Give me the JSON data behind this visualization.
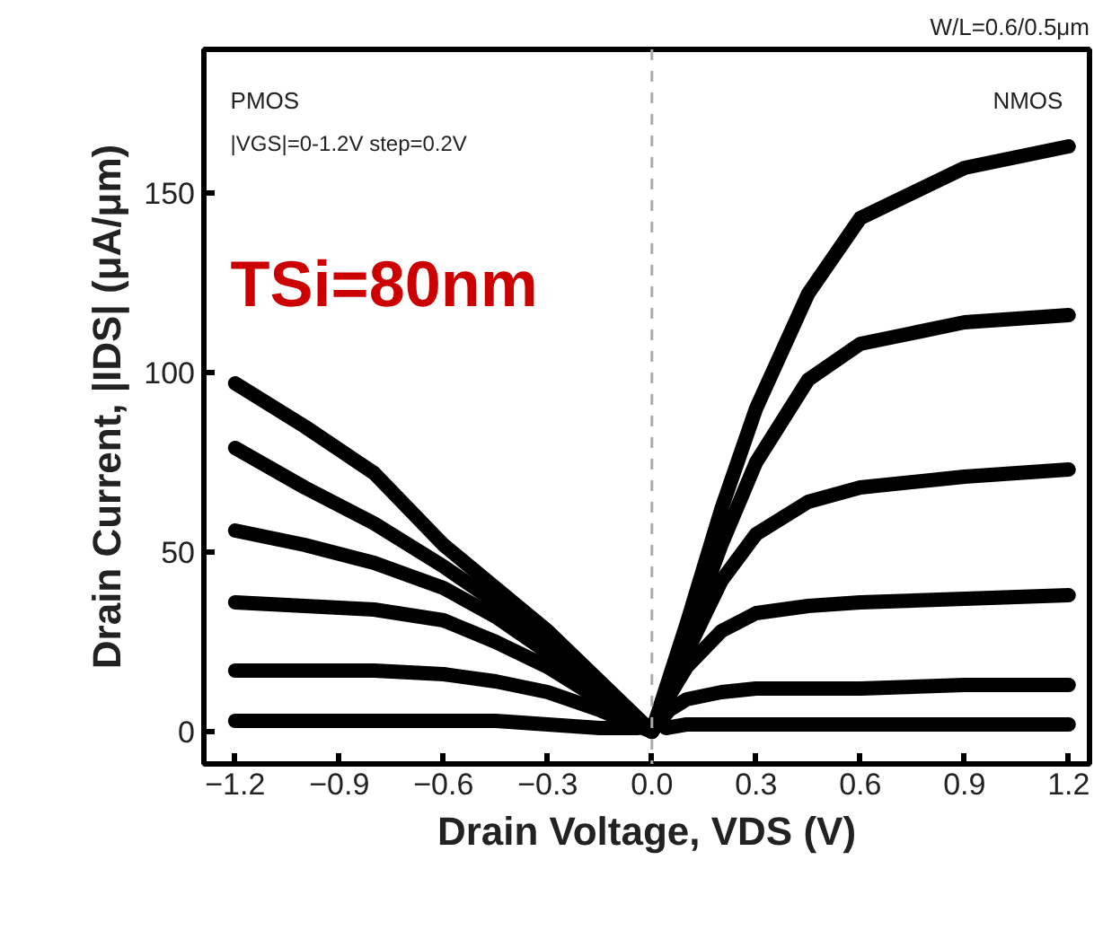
{
  "chart_data": {
    "type": "line",
    "xlabel": "Drain Voltage, VDS (V)",
    "ylabel": "Drain Current, |IDS| (μA/μm)",
    "annotations": [
      "W/L=0.6/0.5μm",
      "PMOS",
      "|VGS|=0-1.2V step=0.2V",
      "NMOS",
      "TSi=80nm"
    ],
    "xlim": [
      -1.29,
      1.26
    ],
    "ylim": [
      -9,
      190
    ],
    "xticks": [
      -1.2,
      -0.9,
      -0.6,
      -0.3,
      {
        "value": 0,
        "label": "0.0"
      },
      0.3,
      0.6,
      0.9,
      1.2
    ],
    "yticks": [
      0,
      50,
      100,
      150
    ],
    "grid": false,
    "line_style": "solid",
    "marker": "none",
    "ref_lines": [
      {
        "axis": "x",
        "value": 0,
        "label": null,
        "color": "#aaaaaa",
        "line_style": "dashed"
      }
    ],
    "series": [
      {
        "color": "#000000",
        "x": [
          0,
          0.05,
          0.1,
          0.2,
          0.3,
          0.45,
          0.6,
          0.9,
          1.2
        ],
        "values": [
          0,
          15,
          30,
          62,
          90,
          122,
          143,
          157,
          163
        ]
      },
      {
        "color": "#000000",
        "x": [
          0,
          0.05,
          0.1,
          0.2,
          0.3,
          0.45,
          0.6,
          0.9,
          1.2
        ],
        "values": [
          0,
          13,
          26,
          52,
          75,
          98,
          108,
          114,
          116
        ]
      },
      {
        "color": "#000000",
        "x": [
          0,
          0.05,
          0.1,
          0.2,
          0.3,
          0.45,
          0.6,
          0.9,
          1.2
        ],
        "values": [
          0,
          12,
          22,
          42,
          55,
          64,
          68,
          71,
          73
        ]
      },
      {
        "color": "#000000",
        "x": [
          0,
          0.05,
          0.1,
          0.2,
          0.3,
          0.45,
          0.6,
          0.9,
          1.2
        ],
        "values": [
          0,
          10,
          18,
          28,
          33,
          35,
          36,
          37,
          38
        ]
      },
      {
        "color": "#000000",
        "x": [
          0,
          0.05,
          0.1,
          0.2,
          0.3,
          0.45,
          0.6,
          0.9,
          1.2
        ],
        "values": [
          0,
          6,
          9,
          11,
          12,
          12,
          12,
          13,
          13
        ]
      },
      {
        "color": "#000000",
        "x": [
          0.04,
          0.1,
          0.2,
          0.3,
          0.45,
          0.6,
          0.9,
          1.2
        ],
        "values": [
          1,
          2,
          2,
          2,
          2,
          2,
          2,
          2
        ]
      },
      {
        "color": "#000000",
        "x": [
          -1.2,
          -1.0,
          -0.8,
          -0.6,
          -0.45,
          -0.3,
          -0.15,
          0
        ],
        "values": [
          97,
          85,
          72,
          52,
          40,
          28,
          14,
          0
        ]
      },
      {
        "color": "#000000",
        "x": [
          -1.2,
          -1.0,
          -0.8,
          -0.6,
          -0.45,
          -0.3,
          -0.15,
          0
        ],
        "values": [
          79,
          68,
          58,
          46,
          36,
          25,
          13,
          0
        ]
      },
      {
        "color": "#000000",
        "x": [
          -1.2,
          -1.0,
          -0.8,
          -0.6,
          -0.45,
          -0.3,
          -0.15,
          0
        ],
        "values": [
          56,
          52,
          47,
          40,
          32,
          22,
          11,
          0
        ]
      },
      {
        "color": "#000000",
        "x": [
          -1.2,
          -1.0,
          -0.8,
          -0.6,
          -0.45,
          -0.3,
          -0.15,
          0
        ],
        "values": [
          36,
          35,
          34,
          31,
          25,
          18,
          9,
          0
        ]
      },
      {
        "color": "#000000",
        "x": [
          -1.2,
          -1.0,
          -0.8,
          -0.6,
          -0.45,
          -0.3,
          -0.15,
          0
        ],
        "values": [
          17,
          17,
          17,
          16,
          14,
          11,
          6,
          0
        ]
      },
      {
        "color": "#000000",
        "x": [
          -1.2,
          -1.0,
          -0.8,
          -0.6,
          -0.45,
          -0.3,
          -0.15,
          -0.04
        ],
        "values": [
          3,
          3,
          3,
          3,
          3,
          2,
          1,
          1
        ]
      }
    ]
  }
}
